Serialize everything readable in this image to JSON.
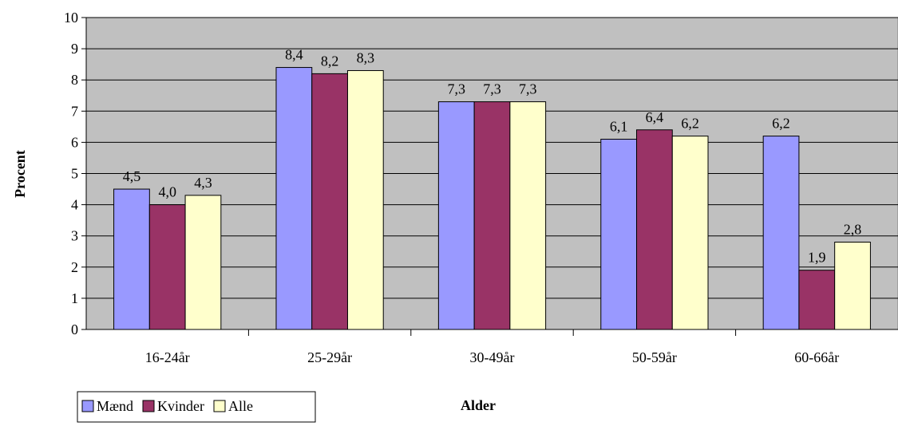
{
  "chart_data": {
    "type": "bar",
    "categories": [
      "16-24år",
      "25-29år",
      "30-49år",
      "50-59år",
      "60-66år"
    ],
    "series": [
      {
        "name": "Mænd",
        "values": [
          4.5,
          8.4,
          7.3,
          6.1,
          6.2
        ],
        "labels": [
          "4,5",
          "8,4",
          "7,3",
          "6,1",
          "6,2"
        ],
        "color": "#9999ff"
      },
      {
        "name": "Kvinder",
        "values": [
          4.0,
          8.2,
          7.3,
          6.4,
          1.9
        ],
        "labels": [
          "4,0",
          "8,2",
          "7,3",
          "6,4",
          "1,9"
        ],
        "color": "#993366"
      },
      {
        "name": "Alle",
        "values": [
          4.3,
          8.3,
          7.3,
          6.2,
          2.8
        ],
        "labels": [
          "4,3",
          "8,3",
          "7,3",
          "6,2",
          "2,8"
        ],
        "color": "#ffffcc"
      }
    ],
    "xlabel": "Alder",
    "ylabel": "Procent",
    "ylim": [
      0,
      10
    ],
    "yticks": [
      0,
      1,
      2,
      3,
      4,
      5,
      6,
      7,
      8,
      9,
      10
    ],
    "grid": true,
    "plot_background": "#c0c0c0",
    "legend_position": "bottom-left"
  }
}
